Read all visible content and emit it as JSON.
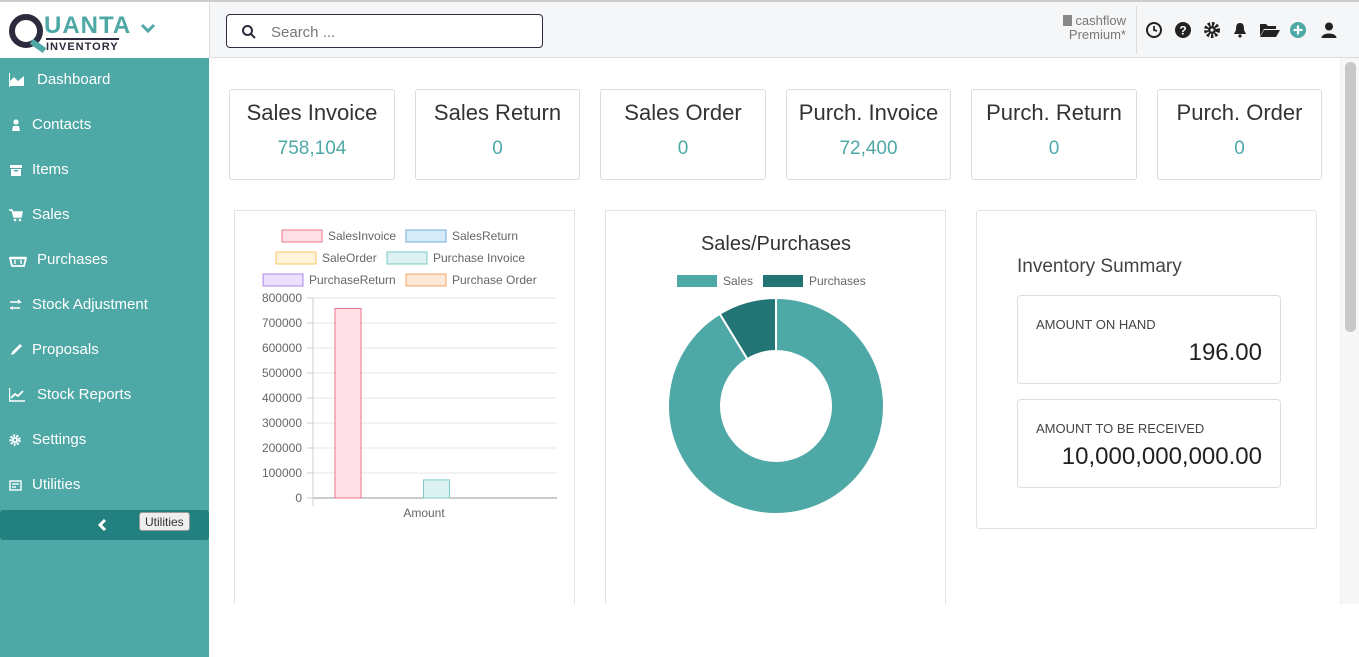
{
  "brand": {
    "name": "UANTA",
    "sub": "INVENTORY"
  },
  "search": {
    "placeholder": "Search ..."
  },
  "company": {
    "line1": "cashflow",
    "line2": "Premium*"
  },
  "toolbar_icons": [
    "clock-icon",
    "help-icon",
    "gear-icon",
    "bell-icon",
    "folder-open-icon",
    "plus-circle-icon",
    "user-icon"
  ],
  "sidebar": {
    "items": [
      {
        "label": "Dashboard",
        "icon": "area-chart-icon"
      },
      {
        "label": "Contacts",
        "icon": "contact-icon"
      },
      {
        "label": "Items",
        "icon": "archive-icon"
      },
      {
        "label": "Sales",
        "icon": "cart-icon"
      },
      {
        "label": "Purchases",
        "icon": "basket-icon"
      },
      {
        "label": "Stock Adjustment",
        "icon": "exchange-icon"
      },
      {
        "label": "Proposals",
        "icon": "pencil-icon"
      },
      {
        "label": "Stock Reports",
        "icon": "line-chart-icon"
      },
      {
        "label": "Settings",
        "icon": "gear-icon"
      },
      {
        "label": "Utilities",
        "icon": "tools-icon"
      }
    ],
    "tooltip": "Utilities"
  },
  "stats": [
    {
      "title": "Sales Invoice",
      "value": "758,104"
    },
    {
      "title": "Sales Return",
      "value": "0"
    },
    {
      "title": "Sales Order",
      "value": "0"
    },
    {
      "title": "Purch. Invoice",
      "value": "72,400"
    },
    {
      "title": "Purch. Return",
      "value": "0"
    },
    {
      "title": "Purch. Order",
      "value": "0"
    }
  ],
  "inventory": {
    "title": "Inventory Summary",
    "on_hand_label": "AMOUNT ON HAND",
    "on_hand_value": "196.00",
    "to_receive_label": "AMOUNT TO BE RECEIVED",
    "to_receive_value": "10,000,000,000.00"
  },
  "colors": {
    "teal": "#4ea8a6",
    "dark_teal": "#227574",
    "navy": "#2b2b3d"
  },
  "chart_data": [
    {
      "type": "bar",
      "categories": [
        "Amount"
      ],
      "series": [
        {
          "name": "SalesInvoice",
          "values": [
            758104
          ],
          "fill": "#ffe0e6",
          "stroke": "#e8768e"
        },
        {
          "name": "SalesReturn",
          "values": [
            0
          ],
          "fill": "#d7ebf9",
          "stroke": "#6aaee0"
        },
        {
          "name": "SaleOrder",
          "values": [
            0
          ],
          "fill": "#fff3d9",
          "stroke": "#f4c86a"
        },
        {
          "name": "Purchase Invoice",
          "values": [
            72400
          ],
          "fill": "#dcf2f2",
          "stroke": "#7ccaca"
        },
        {
          "name": "PurchaseReturn",
          "values": [
            0
          ],
          "fill": "#ebe0ff",
          "stroke": "#a98ae6"
        },
        {
          "name": "Purchase Order",
          "values": [
            0
          ],
          "fill": "#ffe8d6",
          "stroke": "#f4a468"
        }
      ],
      "yticks": [
        "800000",
        "700000",
        "600000",
        "500000",
        "400000",
        "300000",
        "200000",
        "100000",
        "0"
      ],
      "ylim": [
        0,
        800000
      ],
      "legend": "top",
      "grid": true
    },
    {
      "type": "pie",
      "title": "Sales/Purchases",
      "labels": [
        "Sales",
        "Purchases"
      ],
      "values": [
        758104,
        72400
      ],
      "colors": [
        "#4ea8a6",
        "#227574"
      ],
      "legend": "top"
    }
  ]
}
